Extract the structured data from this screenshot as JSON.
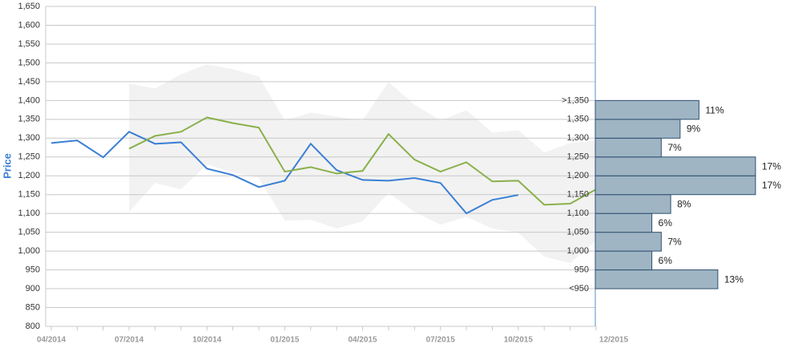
{
  "chart_data": [
    {
      "type": "line",
      "y_label": "Price",
      "categories": [
        "04/2014",
        null,
        null,
        "07/2014",
        null,
        null,
        "10/2014",
        null,
        null,
        "01/2015",
        null,
        null,
        "04/2015",
        null,
        null,
        "07/2015",
        null,
        null,
        "10/2015",
        null,
        null,
        "12/2015"
      ],
      "ylim": [
        800,
        1650
      ],
      "yticks": [
        800,
        850,
        900,
        950,
        {
          "value": 1000,
          "label": "1,000"
        },
        {
          "value": 1050,
          "label": "1,050"
        },
        {
          "value": 1100,
          "label": "1,100"
        },
        {
          "value": 1150,
          "label": "1,150"
        },
        {
          "value": 1200,
          "label": "1,200"
        },
        {
          "value": 1250,
          "label": "1,250"
        },
        {
          "value": 1300,
          "label": "1,300"
        },
        {
          "value": 1350,
          "label": "1,350"
        },
        {
          "value": 1400,
          "label": "1,400"
        },
        {
          "value": 1450,
          "label": "1,450"
        },
        {
          "value": 1500,
          "label": "1,500"
        },
        {
          "value": 1550,
          "label": "1,550"
        },
        {
          "value": 1600,
          "label": "1,600"
        },
        {
          "value": 1650,
          "label": "1,650"
        }
      ],
      "grid": true,
      "band": {
        "color": "#f2f2f2",
        "high": [
          null,
          null,
          null,
          1445,
          1432,
          1470,
          1496,
          1483,
          1464,
          1347,
          1368,
          1357,
          1347,
          1449,
          1389,
          1347,
          1374,
          1315,
          1321,
          1262,
          1287,
          1294
        ],
        "low": [
          null,
          null,
          null,
          1104,
          1181,
          1164,
          1230,
          1209,
          1194,
          1081,
          1083,
          1060,
          1079,
          1155,
          1104,
          1070,
          1091,
          1060,
          1049,
          985,
          968,
          1028
        ]
      },
      "series": [
        {
          "color": "#3a7fd5",
          "values": [
            1287,
            1294,
            1249,
            1317,
            1285,
            1289,
            1219,
            1202,
            1170,
            1187,
            1285,
            1215,
            1189,
            1187,
            1194,
            1181,
            1100,
            1136,
            1149,
            null,
            null,
            null
          ]
        },
        {
          "color": "#8ab04a",
          "values": [
            null,
            null,
            null,
            1272,
            1306,
            1317,
            1355,
            1340,
            1328,
            1211,
            1223,
            1206,
            1213,
            1311,
            1243,
            1211,
            1236,
            1185,
            1187,
            1123,
            1126,
            1164
          ]
        }
      ]
    },
    {
      "type": "histogram",
      "orientation": "horizontal",
      "color": "#9fb5c4",
      "edge_color": "#2f4f6f",
      "bins": [
        {
          "value": 900,
          "label": "<950"
        },
        950,
        {
          "value": 1000,
          "label": "1,000"
        },
        {
          "value": 1050,
          "label": "1,050"
        },
        {
          "value": 1100,
          "label": "1,100"
        },
        {
          "value": 1150,
          "label": "1,150"
        },
        {
          "value": 1200,
          "label": "1,200"
        },
        {
          "value": 1250,
          "label": "1,250"
        },
        {
          "value": 1300,
          "label": "1,300"
        },
        {
          "value": 1350,
          "label": "1,350"
        },
        {
          "value": 1400,
          "label": ">1,350"
        }
      ],
      "values": [
        13,
        6,
        7,
        6,
        8,
        17,
        17,
        7,
        9,
        11
      ],
      "value_labels": [
        "13%",
        "6%",
        "7%",
        "6%",
        "8%",
        "17%",
        "17%",
        "7%",
        "9%",
        "11%"
      ]
    }
  ]
}
